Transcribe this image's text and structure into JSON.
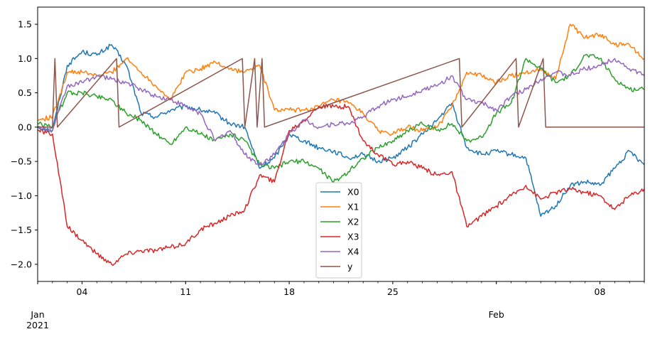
{
  "chart_data": {
    "type": "line",
    "title": "",
    "xlabel": "",
    "ylabel": "",
    "grid": false,
    "legend_position": "bottom-center",
    "xlim": [
      "2021-01-01",
      "2021-02-11"
    ],
    "ylim": [
      -2.25,
      1.75
    ],
    "y_ticks": [
      -2.0,
      -1.5,
      -1.0,
      -0.5,
      0.0,
      0.5,
      1.0,
      1.5
    ],
    "y_tick_labels": [
      "−2.0",
      "−1.5",
      "−1.0",
      "−0.5",
      "0.0",
      "0.5",
      "1.0",
      "1.5"
    ],
    "x_major_ticks": [
      {
        "date": "2021-01-04",
        "label": "04"
      },
      {
        "date": "2021-01-11",
        "label": "11"
      },
      {
        "date": "2021-01-18",
        "label": "18"
      },
      {
        "date": "2021-01-25",
        "label": "25"
      },
      {
        "date": "2021-02-08",
        "label": "08"
      }
    ],
    "x_month_labels": [
      {
        "date": "2021-01-01",
        "label": "Jan",
        "sublabel": "2021"
      },
      {
        "date": "2021-02-01",
        "label": "Feb",
        "sublabel": ""
      }
    ],
    "series": [
      {
        "name": "X0",
        "color": "#1f77b4",
        "x": [
          "2021-01-01",
          "2021-01-02",
          "2021-01-03",
          "2021-01-04",
          "2021-01-05",
          "2021-01-06",
          "2021-01-07",
          "2021-01-08",
          "2021-01-09",
          "2021-01-10",
          "2021-01-11",
          "2021-01-12",
          "2021-01-13",
          "2021-01-14",
          "2021-01-15",
          "2021-01-16",
          "2021-01-17",
          "2021-01-18",
          "2021-01-19",
          "2021-01-20",
          "2021-01-21",
          "2021-01-22",
          "2021-01-23",
          "2021-01-24",
          "2021-01-25",
          "2021-01-26",
          "2021-01-27",
          "2021-01-28",
          "2021-01-29",
          "2021-01-30",
          "2021-01-31",
          "2021-02-01",
          "2021-02-02",
          "2021-02-03",
          "2021-02-04",
          "2021-02-05",
          "2021-02-06",
          "2021-02-07",
          "2021-02-08",
          "2021-02-09",
          "2021-02-10",
          "2021-02-11"
        ],
        "values": [
          0.0,
          -0.05,
          0.9,
          1.1,
          1.05,
          1.2,
          0.9,
          0.2,
          0.15,
          0.25,
          0.3,
          0.25,
          0.2,
          0.05,
          0.0,
          -0.6,
          -0.45,
          -0.1,
          -0.2,
          -0.3,
          -0.35,
          -0.45,
          -0.4,
          -0.5,
          -0.45,
          -0.3,
          -0.1,
          0.1,
          0.35,
          -0.3,
          -0.4,
          -0.35,
          -0.4,
          -0.45,
          -1.3,
          -1.15,
          -0.85,
          -0.8,
          -0.85,
          -0.6,
          -0.35,
          -0.55
        ]
      },
      {
        "name": "X1",
        "color": "#ff7f0e",
        "x": [
          "2021-01-01",
          "2021-01-02",
          "2021-01-03",
          "2021-01-04",
          "2021-01-05",
          "2021-01-06",
          "2021-01-07",
          "2021-01-08",
          "2021-01-09",
          "2021-01-10",
          "2021-01-11",
          "2021-01-12",
          "2021-01-13",
          "2021-01-14",
          "2021-01-15",
          "2021-01-16",
          "2021-01-17",
          "2021-01-18",
          "2021-01-19",
          "2021-01-20",
          "2021-01-21",
          "2021-01-22",
          "2021-01-23",
          "2021-01-24",
          "2021-01-25",
          "2021-01-26",
          "2021-01-27",
          "2021-01-28",
          "2021-01-29",
          "2021-01-30",
          "2021-01-31",
          "2021-02-01",
          "2021-02-02",
          "2021-02-03",
          "2021-02-04",
          "2021-02-05",
          "2021-02-06",
          "2021-02-07",
          "2021-02-08",
          "2021-02-09",
          "2021-02-10",
          "2021-02-11"
        ],
        "values": [
          0.1,
          0.15,
          0.8,
          0.8,
          0.75,
          0.8,
          1.0,
          0.8,
          0.6,
          0.4,
          0.8,
          0.85,
          0.95,
          0.85,
          0.8,
          0.9,
          0.25,
          0.25,
          0.25,
          0.3,
          0.4,
          0.35,
          0.2,
          -0.05,
          -0.1,
          0.0,
          -0.05,
          0.0,
          0.3,
          0.8,
          0.75,
          0.65,
          0.75,
          0.8,
          0.85,
          0.7,
          1.5,
          1.3,
          1.35,
          1.2,
          1.2,
          1.0
        ]
      },
      {
        "name": "X2",
        "color": "#2ca02c",
        "x": [
          "2021-01-01",
          "2021-01-02",
          "2021-01-03",
          "2021-01-04",
          "2021-01-05",
          "2021-01-06",
          "2021-01-07",
          "2021-01-08",
          "2021-01-09",
          "2021-01-10",
          "2021-01-11",
          "2021-01-12",
          "2021-01-13",
          "2021-01-14",
          "2021-01-15",
          "2021-01-16",
          "2021-01-17",
          "2021-01-18",
          "2021-01-19",
          "2021-01-20",
          "2021-01-21",
          "2021-01-22",
          "2021-01-23",
          "2021-01-24",
          "2021-01-25",
          "2021-01-26",
          "2021-01-27",
          "2021-01-28",
          "2021-01-29",
          "2021-01-30",
          "2021-01-31",
          "2021-02-01",
          "2021-02-02",
          "2021-02-03",
          "2021-02-04",
          "2021-02-05",
          "2021-02-06",
          "2021-02-07",
          "2021-02-08",
          "2021-02-09",
          "2021-02-10",
          "2021-02-11"
        ],
        "values": [
          0.05,
          0.0,
          0.5,
          0.5,
          0.45,
          0.4,
          0.2,
          0.1,
          -0.1,
          -0.25,
          0.0,
          -0.1,
          -0.2,
          -0.1,
          -0.2,
          -0.55,
          -0.6,
          -0.5,
          -0.5,
          -0.6,
          -0.8,
          -0.65,
          -0.45,
          -0.3,
          -0.2,
          -0.05,
          0.05,
          -0.05,
          0.05,
          -0.2,
          -0.15,
          0.2,
          0.35,
          1.0,
          0.85,
          0.65,
          0.75,
          1.05,
          1.0,
          0.7,
          0.55,
          0.55
        ]
      },
      {
        "name": "X3",
        "color": "#d62728",
        "x": [
          "2021-01-01",
          "2021-01-02",
          "2021-01-03",
          "2021-01-04",
          "2021-01-05",
          "2021-01-06",
          "2021-01-07",
          "2021-01-08",
          "2021-01-09",
          "2021-01-10",
          "2021-01-11",
          "2021-01-12",
          "2021-01-13",
          "2021-01-14",
          "2021-01-15",
          "2021-01-16",
          "2021-01-17",
          "2021-01-18",
          "2021-01-19",
          "2021-01-20",
          "2021-01-21",
          "2021-01-22",
          "2021-01-23",
          "2021-01-24",
          "2021-01-25",
          "2021-01-26",
          "2021-01-27",
          "2021-01-28",
          "2021-01-29",
          "2021-01-30",
          "2021-01-31",
          "2021-02-01",
          "2021-02-02",
          "2021-02-03",
          "2021-02-04",
          "2021-02-05",
          "2021-02-06",
          "2021-02-07",
          "2021-02-08",
          "2021-02-09",
          "2021-02-10",
          "2021-02-11"
        ],
        "values": [
          -0.05,
          -0.1,
          -1.45,
          -1.65,
          -1.85,
          -2.0,
          -1.85,
          -1.8,
          -1.8,
          -1.75,
          -1.7,
          -1.5,
          -1.4,
          -1.3,
          -1.2,
          -0.7,
          -0.8,
          -0.05,
          0.1,
          0.3,
          0.3,
          0.3,
          -0.2,
          -0.4,
          -0.55,
          -0.5,
          -0.6,
          -0.7,
          -0.65,
          -1.45,
          -1.3,
          -1.15,
          -1.0,
          -0.85,
          -1.05,
          -0.95,
          -0.9,
          -0.95,
          -1.0,
          -1.2,
          -1.0,
          -0.9
        ]
      },
      {
        "name": "X4",
        "color": "#9467bd",
        "x": [
          "2021-01-01",
          "2021-01-02",
          "2021-01-03",
          "2021-01-04",
          "2021-01-05",
          "2021-01-06",
          "2021-01-07",
          "2021-01-08",
          "2021-01-09",
          "2021-01-10",
          "2021-01-11",
          "2021-01-12",
          "2021-01-13",
          "2021-01-14",
          "2021-01-15",
          "2021-01-16",
          "2021-01-17",
          "2021-01-18",
          "2021-01-19",
          "2021-01-20",
          "2021-01-21",
          "2021-01-22",
          "2021-01-23",
          "2021-01-24",
          "2021-01-25",
          "2021-01-26",
          "2021-01-27",
          "2021-01-28",
          "2021-01-29",
          "2021-01-30",
          "2021-01-31",
          "2021-02-01",
          "2021-02-02",
          "2021-02-03",
          "2021-02-04",
          "2021-02-05",
          "2021-02-06",
          "2021-02-07",
          "2021-02-08",
          "2021-02-09",
          "2021-02-10",
          "2021-02-11"
        ],
        "values": [
          0.0,
          -0.05,
          0.6,
          0.65,
          0.75,
          0.7,
          0.65,
          0.55,
          0.45,
          0.4,
          0.3,
          0.2,
          -0.2,
          -0.05,
          -0.4,
          -0.55,
          -0.4,
          -0.1,
          0.1,
          0.0,
          0.05,
          0.05,
          0.15,
          0.3,
          0.4,
          0.45,
          0.55,
          0.6,
          0.75,
          0.4,
          0.35,
          0.25,
          0.45,
          0.55,
          0.7,
          0.8,
          0.75,
          0.85,
          0.9,
          1.0,
          0.85,
          0.75
        ]
      },
      {
        "name": "y",
        "color": "#8c564b",
        "step": true,
        "x": [
          "2021-01-01",
          "2021-01-02",
          "2021-01-02 04:00",
          "2021-01-02 08:00",
          "2021-01-06 08:00",
          "2021-01-06 12:00",
          "2021-01-14 20:00",
          "2021-01-15 00:00",
          "2021-01-15 16:00",
          "2021-01-15 20:00",
          "2021-01-16 04:00",
          "2021-01-16 08:00",
          "2021-01-29 12:00",
          "2021-01-29 16:00",
          "2021-02-02 08:00",
          "2021-02-02 12:00",
          "2021-02-04 04:00",
          "2021-02-04 08:00",
          "2021-02-11"
        ],
        "values": [
          0,
          0,
          1,
          0,
          1,
          0,
          1,
          0,
          1,
          0,
          1,
          0,
          1,
          0,
          1,
          0,
          1,
          0,
          0
        ]
      }
    ]
  }
}
